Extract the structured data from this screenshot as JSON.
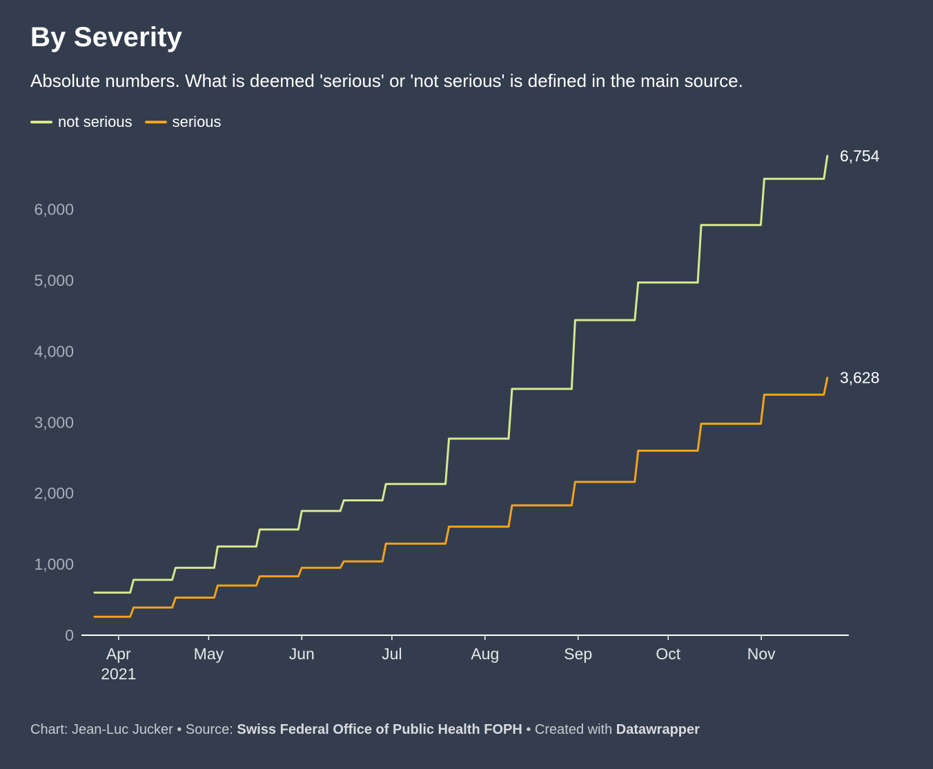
{
  "header": {
    "title": "By Severity",
    "subtitle": "Absolute numbers. What is deemed 'serious' or 'not serious' is defined in the main source."
  },
  "footer": {
    "chart_prefix": "Chart: Jean-Luc Jucker • Source: ",
    "source": "Swiss Federal Office of Public Health FOPH",
    "created_prefix": " • Created with ",
    "tool": "Datawrapper"
  },
  "colors": {
    "background": "#333d4d",
    "not_serious": "#d8e88e",
    "serious": "#f7a21b",
    "axis": "#ffffff",
    "tick_text": "#aab0ba"
  },
  "chart_data": {
    "type": "line",
    "line_style": "step",
    "title": "By Severity",
    "subtitle": "Absolute numbers. What is deemed 'serious' or 'not serious' is defined in the main source.",
    "legend_position": "top-left",
    "grid": false,
    "ylim": [
      0,
      6754
    ],
    "xlim": [
      "2021-03-24",
      "2021-11-26"
    ],
    "y_ticks": [
      0,
      1000,
      2000,
      3000,
      4000,
      5000,
      6000
    ],
    "y_tick_labels": [
      "0",
      "1,000",
      "2,000",
      "3,000",
      "4,000",
      "5,000",
      "6,000"
    ],
    "x_ticks": [
      {
        "date": "2021-04-01",
        "label": "Apr",
        "sublabel": "2021"
      },
      {
        "date": "2021-05-01",
        "label": "May",
        "sublabel": ""
      },
      {
        "date": "2021-06-01",
        "label": "Jun",
        "sublabel": ""
      },
      {
        "date": "2021-07-01",
        "label": "Jul",
        "sublabel": ""
      },
      {
        "date": "2021-08-01",
        "label": "Aug",
        "sublabel": ""
      },
      {
        "date": "2021-09-01",
        "label": "Sep",
        "sublabel": ""
      },
      {
        "date": "2021-10-01",
        "label": "Oct",
        "sublabel": ""
      },
      {
        "date": "2021-11-01",
        "label": "Nov",
        "sublabel": ""
      }
    ],
    "series": [
      {
        "name": "not serious",
        "color": "#d8e88e",
        "end_label": "6,754",
        "dates": [
          "2021-03-24",
          "2021-04-06",
          "2021-04-20",
          "2021-05-04",
          "2021-05-18",
          "2021-06-01",
          "2021-06-15",
          "2021-06-29",
          "2021-07-20",
          "2021-08-10",
          "2021-08-31",
          "2021-09-21",
          "2021-10-12",
          "2021-11-02",
          "2021-11-23"
        ],
        "values": [
          600,
          780,
          950,
          1250,
          1490,
          1750,
          1900,
          2130,
          2770,
          3470,
          4440,
          4970,
          5780,
          6430,
          6754
        ]
      },
      {
        "name": "serious",
        "color": "#f7a21b",
        "end_label": "3,628",
        "dates": [
          "2021-03-24",
          "2021-04-06",
          "2021-04-20",
          "2021-05-04",
          "2021-05-18",
          "2021-06-01",
          "2021-06-15",
          "2021-06-29",
          "2021-07-20",
          "2021-08-10",
          "2021-08-31",
          "2021-09-21",
          "2021-10-12",
          "2021-11-02",
          "2021-11-23"
        ],
        "values": [
          260,
          390,
          530,
          700,
          830,
          950,
          1040,
          1290,
          1530,
          1830,
          2160,
          2600,
          2980,
          3390,
          3628
        ]
      }
    ]
  }
}
